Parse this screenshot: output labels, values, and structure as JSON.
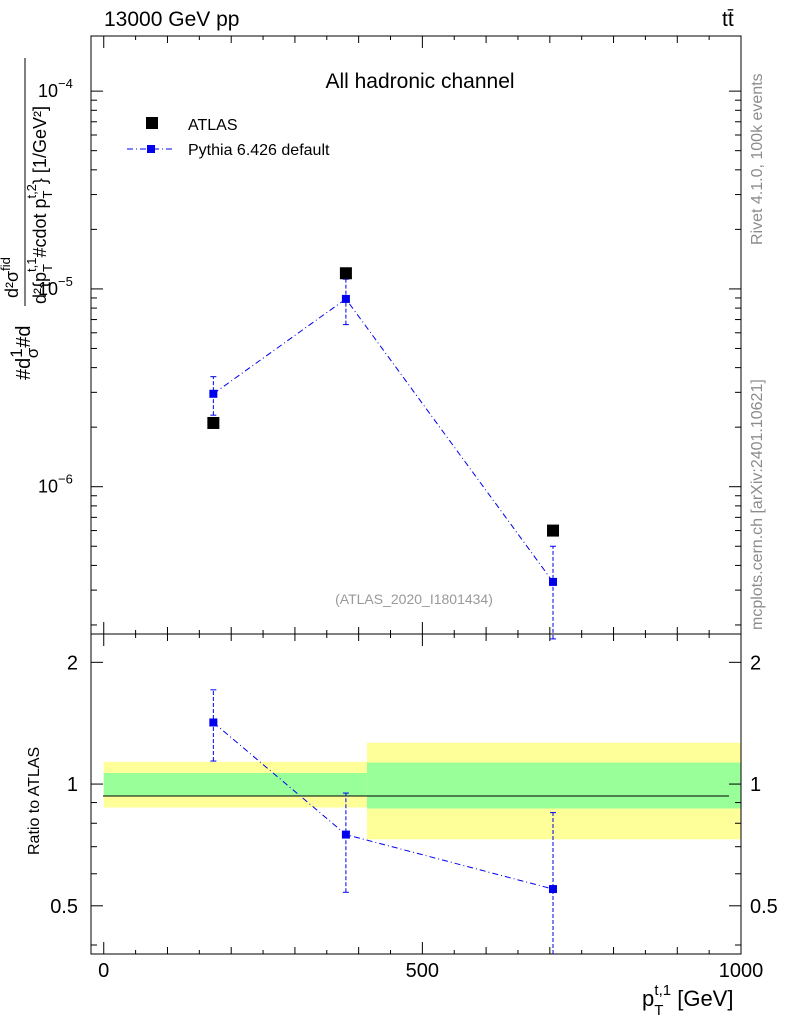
{
  "header": {
    "left": "13000 GeV pp",
    "right": "tt̄"
  },
  "side_text": {
    "rivet": "Rivet 4.1.0,  100k events",
    "mcplots": "mcplots.cern.ch [arXiv:2401.10621]"
  },
  "colors": {
    "data": "#000000",
    "mc": "#0000ee",
    "band_inner": "#99ff99",
    "band_outer": "#ffff99"
  },
  "chart_data": [
    {
      "type": "scatter",
      "title": "All hadronic channel",
      "ylabel_parts": {
        "num_prefix": "#d",
        "one": "1",
        "sigma": "σ",
        "frac_num": "d²σ",
        "frac_num_sup": "fid",
        "frac_den": "d²{p",
        "p1_sub": "T",
        "p1_sup": "t,1",
        "cdot": "#cdot p",
        "p2_sub": "T",
        "p2_sup": "t,2",
        "unit": "} [1/GeV²]"
      },
      "ylabel": "#d 1/σ #d d²σ^fid / d²{p_T^{t,1} #cdot p_T^{t,2}} [1/GeV²]",
      "yscale": "log",
      "ylim": [
        1.8e-07,
        0.00019
      ],
      "xlim": [
        -20,
        1000
      ],
      "yticks": [
        {
          "value": 1e-06,
          "base": "10",
          "exp": "−6"
        },
        {
          "value": 1e-05,
          "base": "10",
          "exp": "−5"
        },
        {
          "value": 0.0001,
          "base": "10",
          "exp": "−4"
        }
      ],
      "legend": {
        "location": "top-left",
        "entries": [
          "ATLAS",
          "Pythia 6.426 default"
        ]
      },
      "annotation": "(ATLAS_2020_I1801434)",
      "series": [
        {
          "name": "ATLAS",
          "x": [
            172,
            380,
            705
          ],
          "y": [
            2.1e-06,
            1.2e-05,
            6e-07
          ]
        },
        {
          "name": "Pythia 6.426 default",
          "x": [
            172,
            380,
            705
          ],
          "y": [
            2.95e-06,
            8.9e-06,
            3.3e-07
          ],
          "yerr_low": [
            2.3e-06,
            6.6e-06,
            1.7e-07
          ],
          "yerr_high": [
            3.6e-06,
            1.12e-05,
            5e-07
          ]
        }
      ]
    },
    {
      "type": "scatter",
      "ylabel": "Ratio to ATLAS",
      "xlabel_main": "p",
      "xlabel_sub": "T",
      "xlabel_sup": "t,1",
      "xlabel_unit": " [GeV]",
      "xlim": [
        -20,
        1000
      ],
      "ylim": [
        0.38,
        2.35
      ],
      "xticks": [
        0,
        500,
        1000
      ],
      "yticks": [
        0.5,
        1,
        2
      ],
      "ytick_labels": [
        "0.5",
        "1",
        "2"
      ],
      "bands": [
        {
          "x": [
            0,
            413
          ],
          "inner": [
            0.935,
            1.065
          ],
          "outer": [
            0.875,
            1.135
          ]
        },
        {
          "x": [
            413,
            1000
          ],
          "inner": [
            0.87,
            1.13
          ],
          "outer": [
            0.73,
            1.265
          ]
        }
      ],
      "series": [
        {
          "name": "Pythia 6.426 default",
          "x": [
            172,
            380,
            705
          ],
          "y": [
            1.42,
            0.75,
            0.55
          ],
          "yerr_low": [
            1.14,
            0.54,
            0.38
          ],
          "yerr_high": [
            1.71,
            0.95,
            0.85
          ]
        }
      ]
    }
  ]
}
